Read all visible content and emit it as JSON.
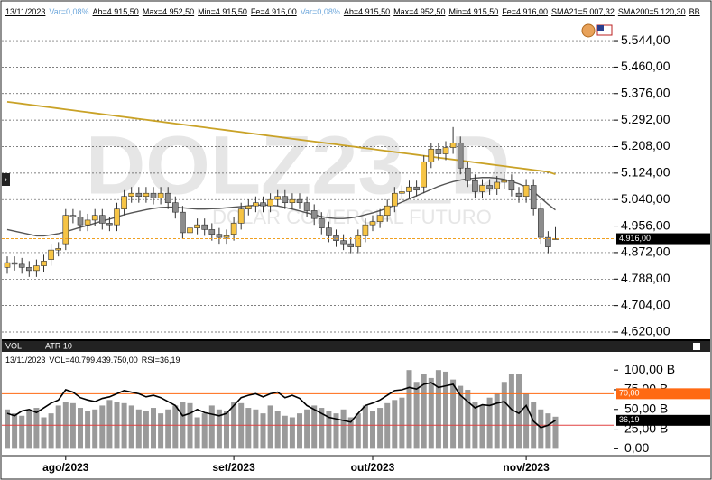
{
  "chart_data": [
    {
      "type": "candlestick",
      "header": [
        "13/11/2023",
        "Var=0,08%",
        "Ab=4.915,50",
        "Max=4.952,50",
        "Min=4.915,50",
        "Fe=4.916,00",
        "Var=0,08%",
        "Ab=4.915,50",
        "Max=4.952,50",
        "Min=4.915,50",
        "Fe=4.916,00",
        "SMA21=5.007,32",
        "SMA200=5.120,30",
        "BB"
      ],
      "watermark": "DOLZ23_D",
      "watermark_subtitle": "DOLAR COMERCIAL FUTURO",
      "open": [
        4825,
        4840,
        4835,
        4825,
        4815,
        4830,
        4850,
        4880,
        4900,
        4990,
        4985,
        4960,
        4975,
        4990,
        4965,
        4960,
        5010,
        5050,
        5060,
        5050,
        5060,
        5045,
        5060,
        5030,
        5000,
        4935,
        4950,
        4960,
        4945,
        4930,
        4920,
        4930,
        4965,
        5010,
        5020,
        5030,
        5020,
        5040,
        5050,
        5030,
        5040,
        5030,
        5005,
        4980,
        4950,
        4925,
        4910,
        4900,
        4890,
        4925,
        4960,
        4970,
        4990,
        5020,
        5060,
        5065,
        5080,
        5080,
        5160,
        5200,
        5185,
        5205,
        5220,
        5140,
        5100,
        5065,
        5085,
        5075,
        5095,
        5100,
        5060,
        5050,
        5085,
        5010,
        4920,
        4915.5
      ],
      "high": [
        4860,
        4860,
        4855,
        4845,
        4850,
        4865,
        4900,
        4905,
        5010,
        5010,
        5005,
        4995,
        5010,
        5010,
        4985,
        5030,
        5070,
        5080,
        5080,
        5080,
        5080,
        5080,
        5080,
        5050,
        5020,
        4970,
        4980,
        4980,
        4965,
        4950,
        4945,
        4985,
        5030,
        5040,
        5050,
        5050,
        5060,
        5070,
        5070,
        5060,
        5060,
        5050,
        5025,
        5000,
        4970,
        4945,
        4930,
        4920,
        4945,
        4980,
        4990,
        5010,
        5040,
        5080,
        5085,
        5100,
        5100,
        5180,
        5220,
        5220,
        5225,
        5270,
        5240,
        5160,
        5120,
        5105,
        5105,
        5115,
        5120,
        5120,
        5080,
        5105,
        5105,
        5030,
        4940,
        4952.5
      ],
      "low": [
        4805,
        4815,
        4805,
        4795,
        4795,
        4810,
        4830,
        4860,
        4880,
        4965,
        4940,
        4940,
        4955,
        4945,
        4940,
        4940,
        4990,
        5030,
        5030,
        5030,
        5025,
        5025,
        5010,
        4980,
        4915,
        4915,
        4930,
        4925,
        4910,
        4900,
        4900,
        4910,
        4945,
        4990,
        5000,
        5000,
        5000,
        5020,
        5010,
        5010,
        5010,
        4985,
        4960,
        4930,
        4905,
        4890,
        4880,
        4870,
        4870,
        4905,
        4940,
        4950,
        4970,
        5000,
        5040,
        5045,
        5050,
        5060,
        5140,
        5165,
        5165,
        5185,
        5120,
        5080,
        5045,
        5045,
        5055,
        5055,
        5075,
        5050,
        5030,
        5030,
        4990,
        4900,
        4870,
        4915.5
      ],
      "close": [
        4840,
        4835,
        4825,
        4815,
        4830,
        4845,
        4880,
        4885,
        4990,
        4985,
        4960,
        4975,
        4990,
        4965,
        4960,
        5010,
        5050,
        5060,
        5050,
        5060,
        5045,
        5060,
        5030,
        5000,
        4935,
        4950,
        4960,
        4945,
        4930,
        4920,
        4925,
        4965,
        5010,
        5020,
        5030,
        5020,
        5040,
        5050,
        5030,
        5040,
        5030,
        5005,
        4980,
        4950,
        4925,
        4910,
        4900,
        4890,
        4925,
        4960,
        4970,
        4990,
        5020,
        5060,
        5065,
        5080,
        5070,
        5160,
        5200,
        5185,
        5205,
        5220,
        5140,
        5100,
        5065,
        5085,
        5075,
        5095,
        5100,
        5070,
        5050,
        5085,
        5010,
        4920,
        4890,
        4916
      ],
      "up_color": "#f6c445",
      "down_color": "#8c8c8c",
      "series": [
        {
          "name": "SMA200",
          "color": "#c9a227",
          "values": [
            5350,
            5347,
            5344,
            5341,
            5338,
            5335,
            5332,
            5329,
            5326,
            5323,
            5320,
            5317,
            5314,
            5311,
            5308,
            5305,
            5302,
            5299,
            5296,
            5293,
            5290,
            5287,
            5284,
            5281,
            5278,
            5275,
            5272,
            5269,
            5266,
            5263,
            5260,
            5257,
            5254,
            5251,
            5248,
            5245,
            5242,
            5239,
            5236,
            5233,
            5230,
            5227,
            5224,
            5221,
            5218,
            5215,
            5212,
            5209,
            5206,
            5203,
            5200,
            5197,
            5194,
            5191,
            5188,
            5185,
            5182,
            5179,
            5176,
            5173,
            5170,
            5167,
            5164,
            5161,
            5158,
            5155,
            5152,
            5149,
            5146,
            5143,
            5140,
            5137,
            5134,
            5131,
            5128,
            5120.3
          ]
        },
        {
          "name": "SMA21",
          "color": "#555555",
          "values": [
            4945,
            4940,
            4935,
            4930,
            4925,
            4925,
            4928,
            4932,
            4938,
            4945,
            4952,
            4958,
            4965,
            4972,
            4978,
            4985,
            4992,
            4998,
            5003,
            5008,
            5012,
            5015,
            5016,
            5016,
            5014,
            5012,
            5010,
            5010,
            5011,
            5012,
            5014,
            5016,
            5018,
            5020,
            5022,
            5023,
            5022,
            5020,
            5015,
            5010,
            5004,
            4998,
            4992,
            4986,
            4982,
            4980,
            4980,
            4982,
            4986,
            4992,
            4998,
            5005,
            5013,
            5022,
            5032,
            5042,
            5052,
            5062,
            5072,
            5082,
            5090,
            5097,
            5102,
            5106,
            5108,
            5110,
            5110,
            5108,
            5104,
            5098,
            5090,
            5080,
            5065,
            5045,
            5025,
            5007.32
          ]
        }
      ],
      "last_price": {
        "value": 4916,
        "label": "4.916,00"
      },
      "ylim": [
        4600,
        5650
      ],
      "yticks": [
        {
          "value": 4620,
          "label": "4.620,00"
        },
        {
          "value": 4704,
          "label": "4.704,00"
        },
        {
          "value": 4788,
          "label": "4.788,00"
        },
        {
          "value": 4872,
          "label": "4.872,00"
        },
        {
          "value": 4956,
          "label": "4.956,00"
        },
        {
          "value": 5040,
          "label": "5.040,00"
        },
        {
          "value": 5124,
          "label": "5.124,00"
        },
        {
          "value": 5208,
          "label": "5.208,00"
        },
        {
          "value": 5292,
          "label": "5.292,00"
        },
        {
          "value": 5376,
          "label": "5.376,00"
        },
        {
          "value": 5460,
          "label": "5.460,00"
        },
        {
          "value": 5544,
          "label": "5.544,00"
        }
      ],
      "grid": true
    },
    {
      "type": "bar",
      "tabs": [
        "VOL",
        "ATR 10"
      ],
      "header": [
        "13/11/2023",
        "VOL=40.799.439.750,00",
        "RSI=36,19"
      ],
      "categories": [
        null,
        null,
        null,
        null,
        null,
        null,
        null,
        null,
        "ago/2023",
        null,
        null,
        null,
        null,
        null,
        null,
        null,
        null,
        null,
        null,
        null,
        null,
        null,
        null,
        null,
        null,
        null,
        null,
        null,
        null,
        null,
        null,
        "set/2023",
        null,
        null,
        null,
        null,
        null,
        null,
        null,
        null,
        null,
        null,
        null,
        null,
        null,
        null,
        null,
        null,
        null,
        null,
        "out/2023",
        null,
        null,
        null,
        null,
        null,
        null,
        null,
        null,
        null,
        null,
        null,
        null,
        null,
        null,
        null,
        null,
        null,
        null,
        null,
        null,
        "nov/2023",
        null,
        null,
        null,
        null
      ],
      "series": [
        {
          "name": "VOL",
          "color": "#9a9a9a",
          "values": [
            50,
            45,
            42,
            48,
            52,
            40,
            45,
            55,
            60,
            58,
            52,
            48,
            50,
            55,
            62,
            60,
            58,
            55,
            50,
            48,
            52,
            45,
            50,
            55,
            60,
            58,
            40,
            45,
            55,
            50,
            48,
            60,
            58,
            52,
            50,
            45,
            55,
            48,
            42,
            40,
            45,
            50,
            55,
            52,
            48,
            45,
            50,
            40,
            45,
            55,
            48,
            52,
            58,
            62,
            65,
            100,
            85,
            95,
            90,
            100,
            98,
            88,
            80,
            75,
            60,
            55,
            65,
            70,
            85,
            95,
            95,
            70,
            60,
            50,
            45,
            40.8
          ]
        },
        {
          "name": "RSI",
          "color": "#000000",
          "values": [
            45,
            42,
            48,
            50,
            46,
            52,
            58,
            62,
            75,
            72,
            65,
            62,
            60,
            64,
            66,
            70,
            74,
            72,
            70,
            66,
            68,
            65,
            60,
            55,
            42,
            45,
            50,
            46,
            44,
            42,
            45,
            55,
            65,
            68,
            70,
            66,
            70,
            72,
            65,
            68,
            64,
            55,
            50,
            45,
            40,
            38,
            36,
            34,
            45,
            55,
            58,
            62,
            68,
            74,
            75,
            78,
            76,
            82,
            84,
            78,
            80,
            82,
            68,
            60,
            52,
            56,
            55,
            58,
            60,
            50,
            45,
            55,
            35,
            27,
            30,
            36.19
          ]
        }
      ],
      "rsi_levels": [
        {
          "value": 70,
          "label": "70,00",
          "color": "#ff6a13"
        },
        {
          "value": 30,
          "color": "#e04040"
        }
      ],
      "last_rsi": {
        "value": 36.19,
        "label": "36,19"
      },
      "ylim": [
        -3,
        122
      ],
      "yticks": [
        {
          "value": 0,
          "label": "0,00"
        },
        {
          "value": 25,
          "label": "25,00 B"
        },
        {
          "value": 50,
          "label": "50,00 B"
        },
        {
          "value": 75,
          "label": "75,00 B"
        },
        {
          "value": 100,
          "label": "100,00 B"
        }
      ]
    }
  ]
}
